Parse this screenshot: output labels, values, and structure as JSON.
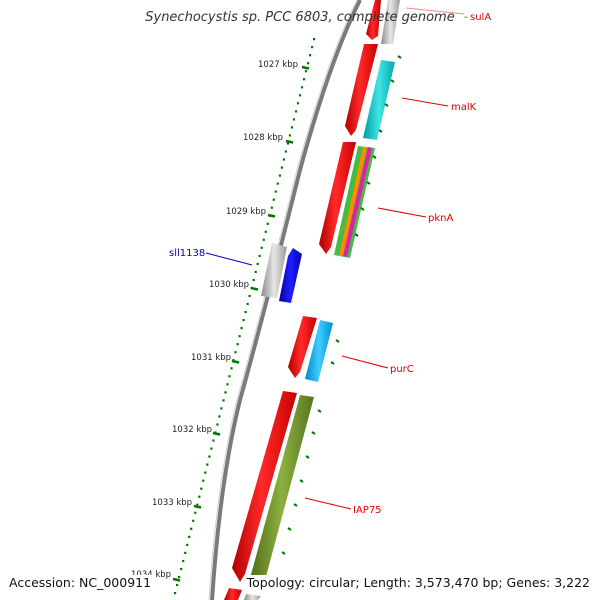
{
  "title": "Synechocystis sp. PCC 6803, complete genome",
  "accession": "Accession: NC_000911",
  "topology": "Topology: circular; Length: 3,573,470 bp; Genes: 3,222",
  "scale_labels": [
    "1027 kbp",
    "1028 kbp",
    "1029 kbp",
    "1030 kbp",
    "1031 kbp",
    "1032 kbp",
    "1033 kbp",
    "1034 kbp"
  ],
  "genes": [
    {
      "label": "sulA",
      "color": "#dd0000"
    },
    {
      "label": "malK",
      "color": "#dd0000"
    },
    {
      "label": "pknA",
      "color": "#dd0000"
    },
    {
      "label": "sll1138",
      "color": "#0000cc"
    },
    {
      "label": "purC",
      "color": "#dd0000"
    },
    {
      "label": "IAP75",
      "color": "#dd0000"
    }
  ],
  "colors": {
    "forward_strand": "#ff0000",
    "reverse_strand": "#0000ff",
    "pseudo_gene": "#b0b0b0",
    "cyan_feature": "#00cccc",
    "sky_feature": "#00aaee",
    "olive_feature": "#6b8e23",
    "backbone": "#808080",
    "tick": "#007700"
  }
}
